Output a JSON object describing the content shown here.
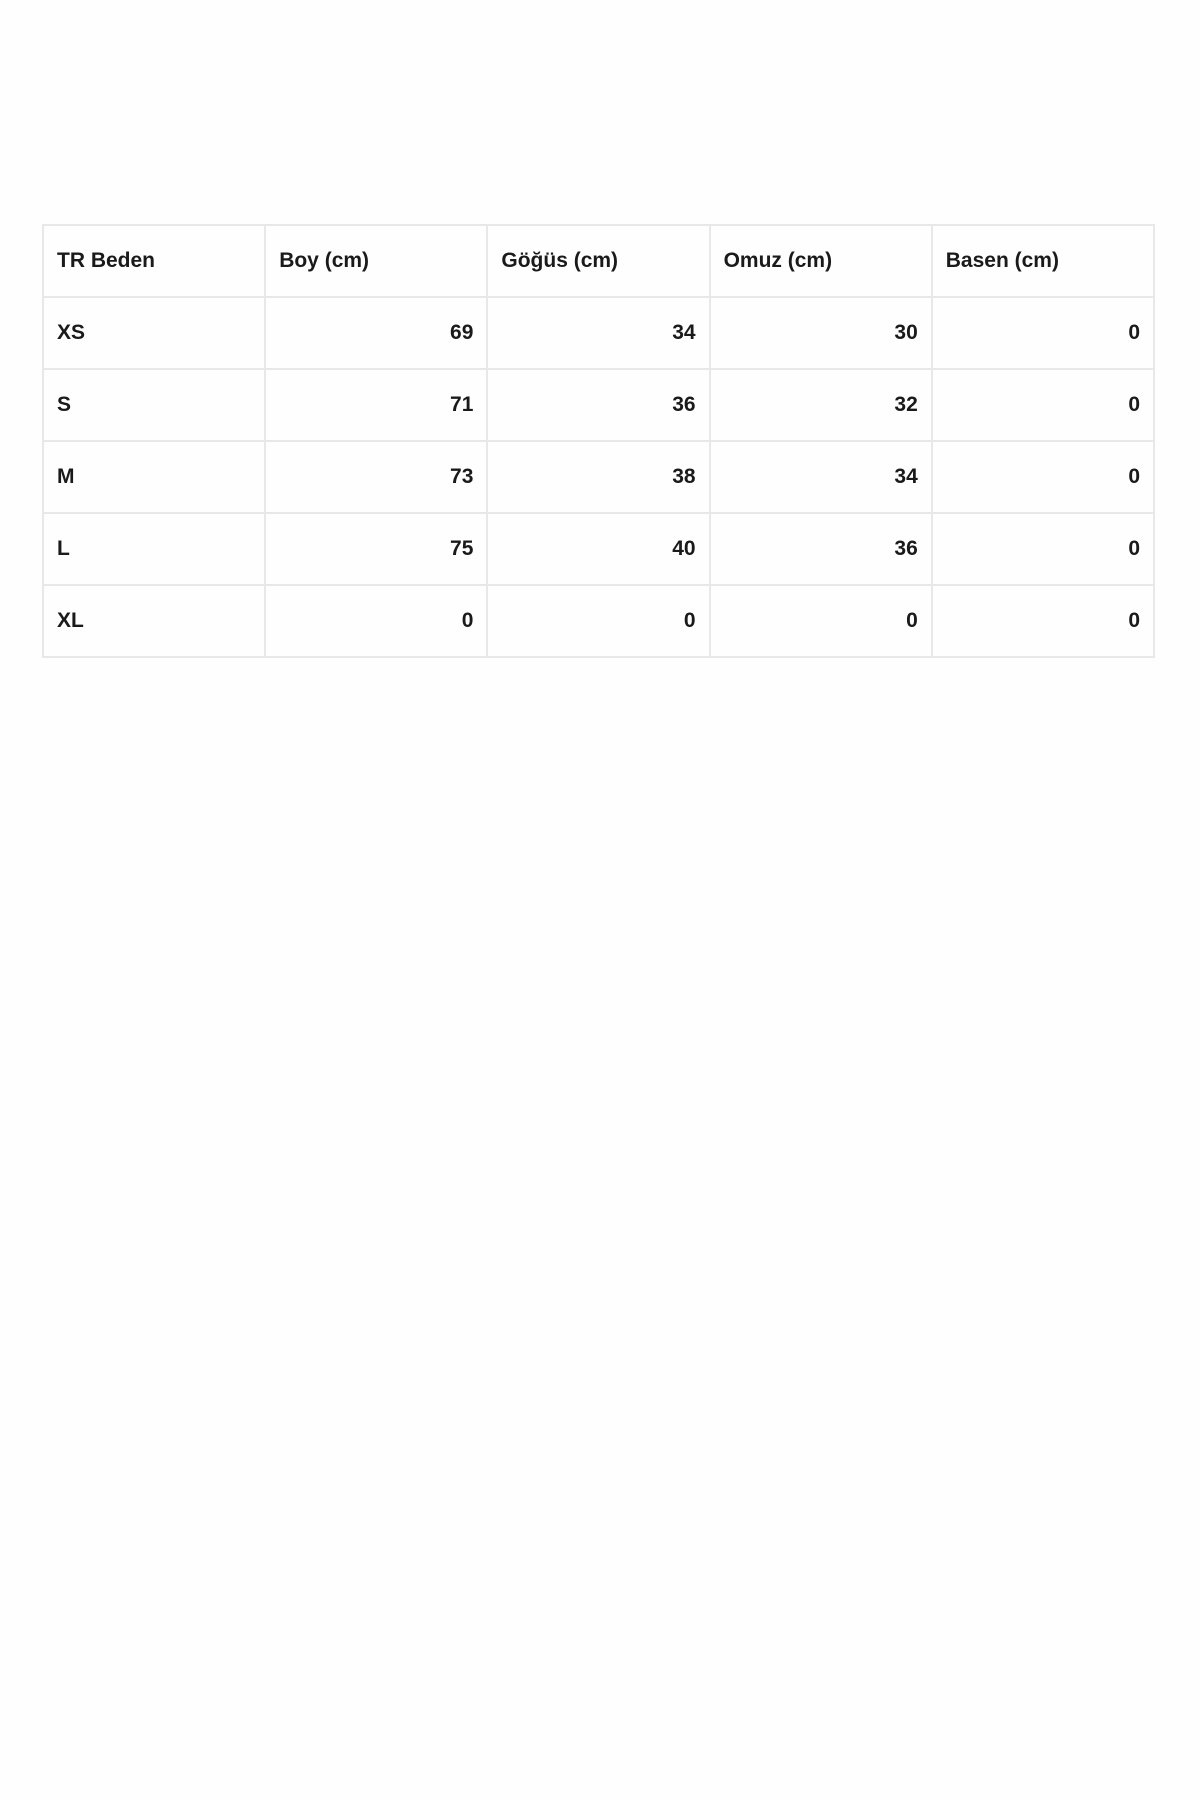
{
  "size_table": {
    "headers": [
      "TR Beden",
      "Boy (cm)",
      "Göğüs (cm)",
      "Omuz (cm)",
      "Basen (cm)"
    ],
    "rows": [
      [
        "XS",
        "69",
        "34",
        "30",
        "0"
      ],
      [
        "S",
        "71",
        "36",
        "32",
        "0"
      ],
      [
        "M",
        "73",
        "38",
        "34",
        "0"
      ],
      [
        "L",
        "75",
        "40",
        "36",
        "0"
      ],
      [
        "XL",
        "0",
        "0",
        "0",
        "0"
      ]
    ]
  }
}
